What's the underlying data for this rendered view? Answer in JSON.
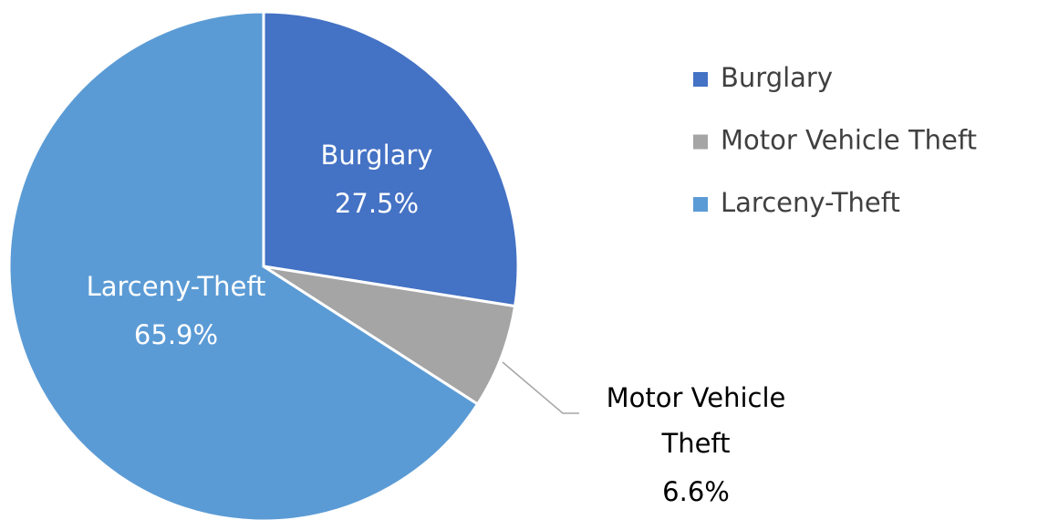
{
  "chart_data": {
    "type": "pie",
    "categories": [
      "Burglary",
      "Motor Vehicle Theft",
      "Larceny-Theft"
    ],
    "values": [
      27.5,
      6.6,
      65.9
    ],
    "value_labels": [
      "27.5%",
      "6.6%",
      "65.9%"
    ],
    "colors": [
      "#4472c4",
      "#a5a5a5",
      "#5b9bd5"
    ],
    "legend": "right"
  }
}
